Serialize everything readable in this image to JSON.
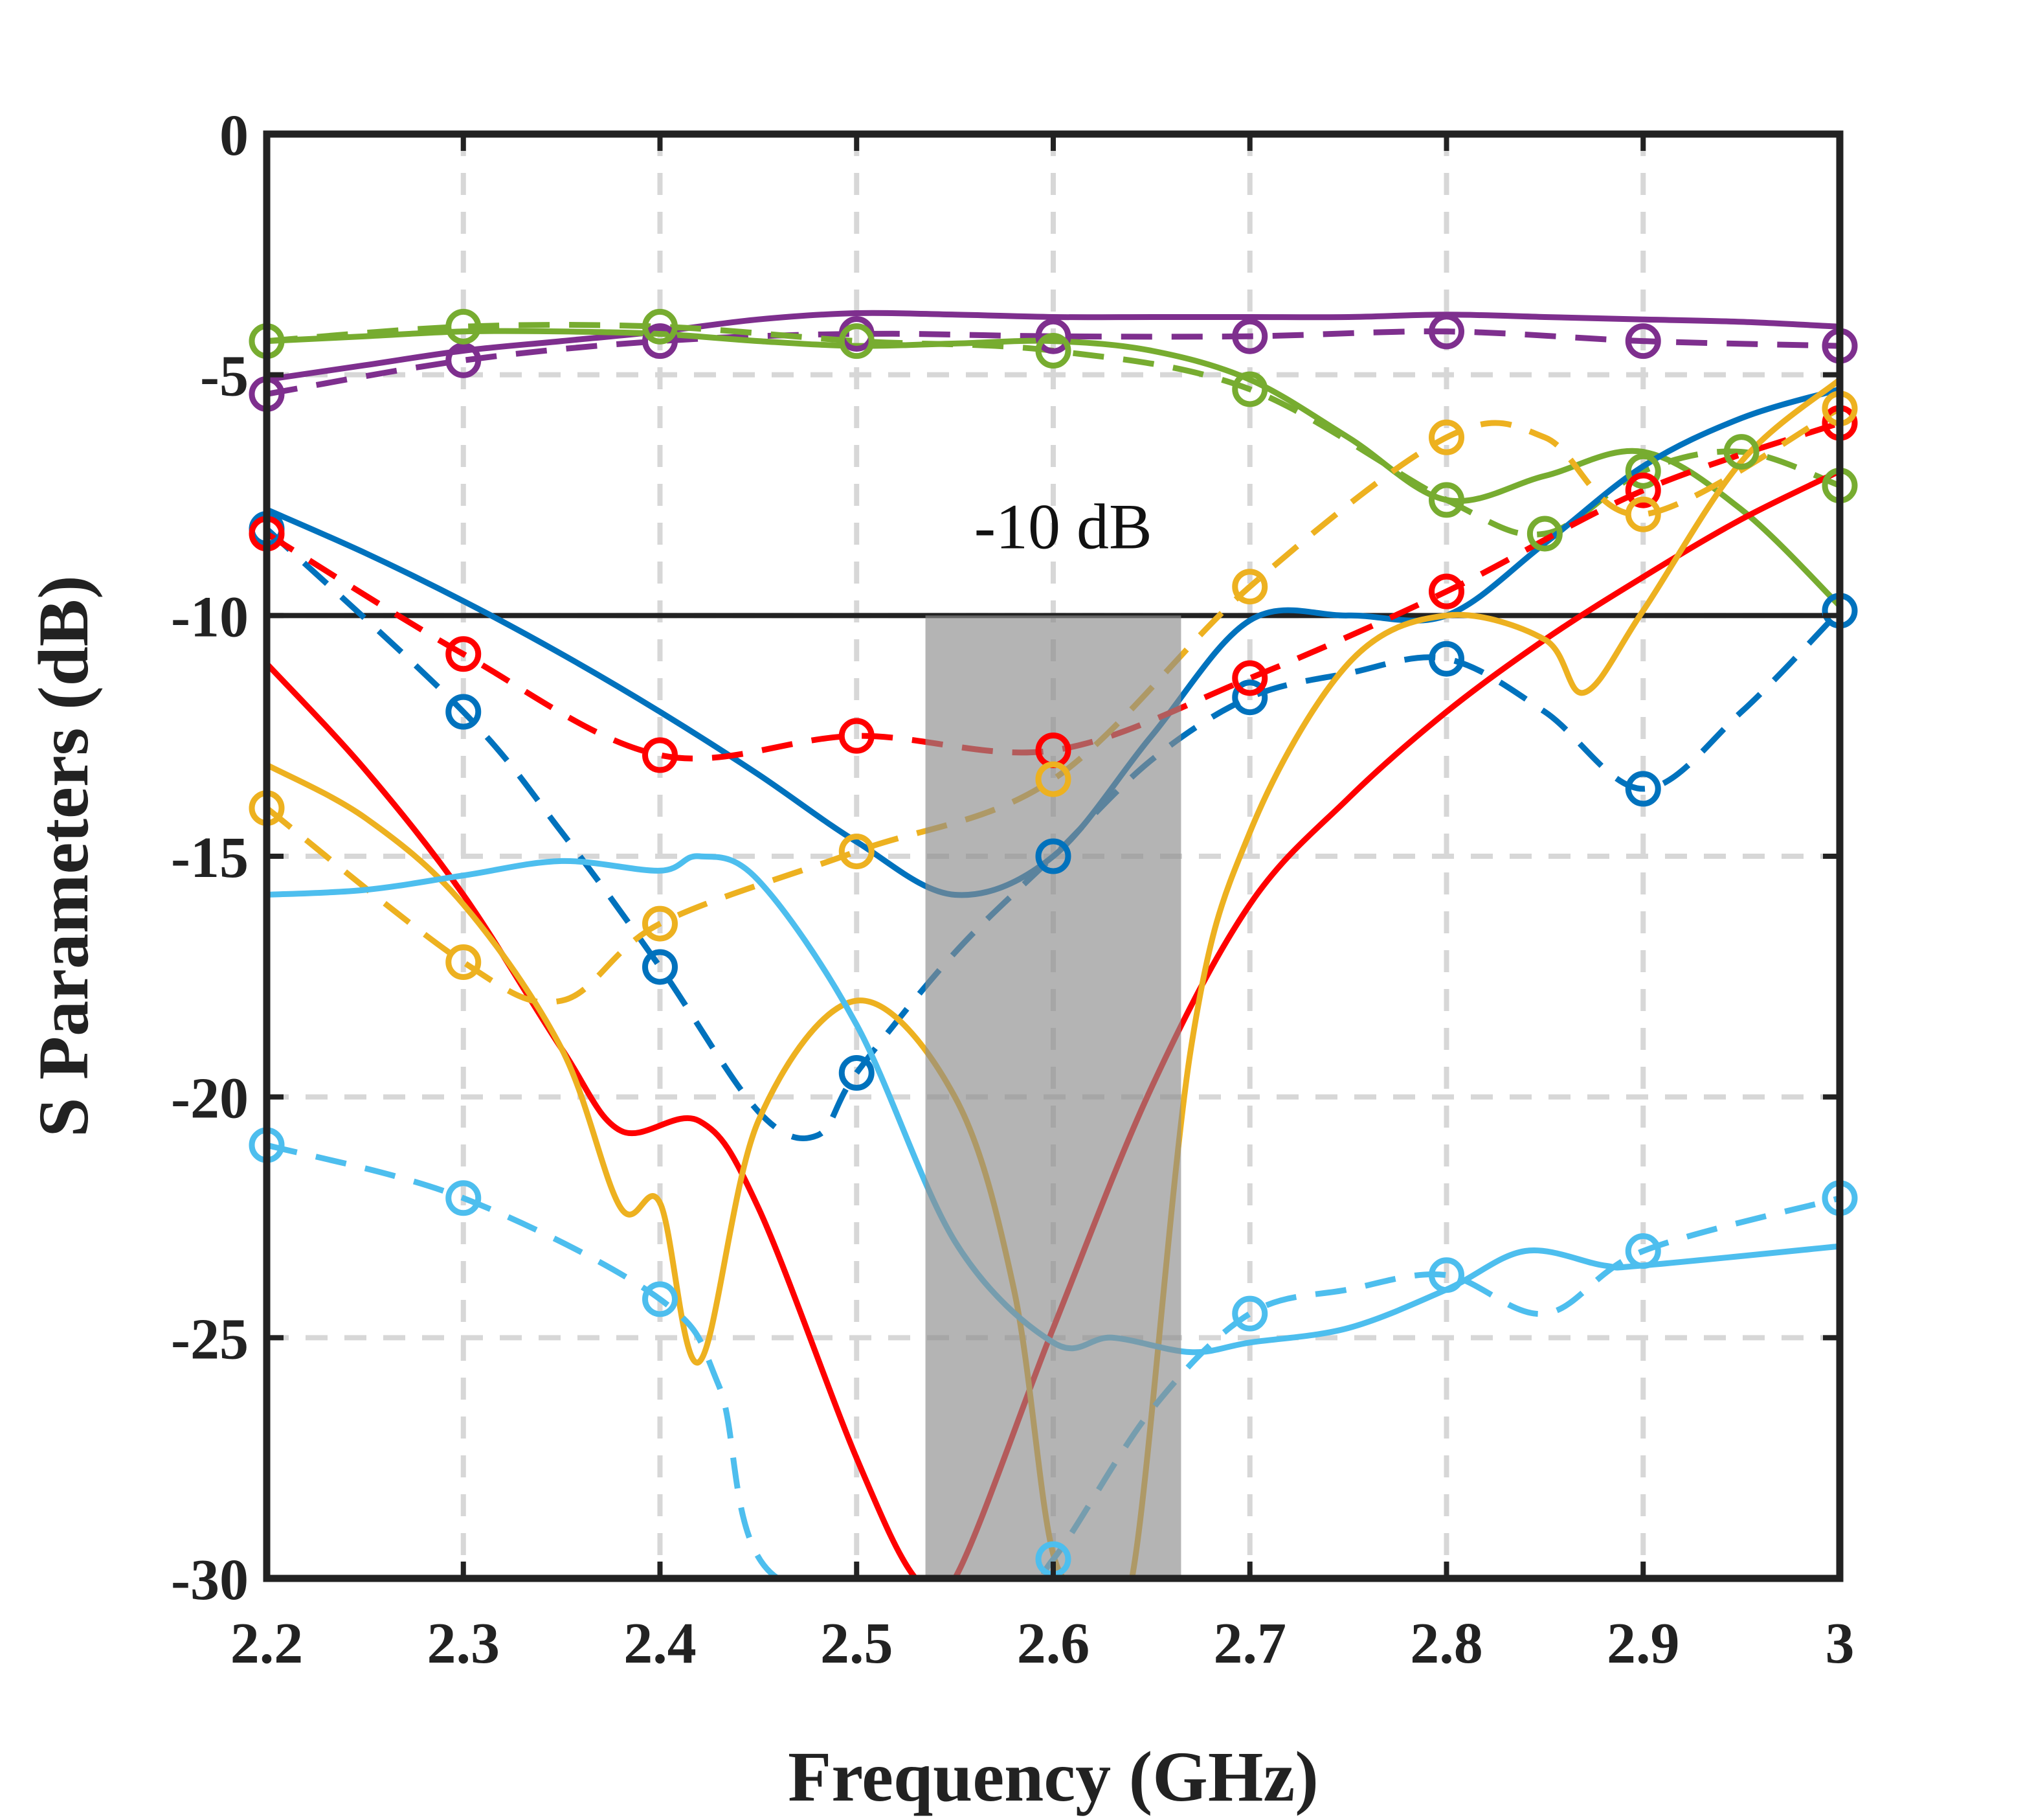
{
  "chart_data": {
    "type": "line",
    "title": "",
    "xlabel": "Frequency (GHz)",
    "ylabel": "S Parameters (dB)",
    "xlim": [
      2.2,
      3.0
    ],
    "ylim": [
      -30,
      0
    ],
    "grid": true,
    "x_ticks": [
      2.2,
      2.3,
      2.4,
      2.5,
      2.6,
      2.7,
      2.8,
      2.9,
      3.0
    ],
    "x_tick_labels": [
      "2.2",
      "2.3",
      "2.4",
      "2.5",
      "2.6",
      "2.7",
      "2.8",
      "2.9",
      "3"
    ],
    "y_ticks": [
      0,
      -5,
      -10,
      -15,
      -20,
      -25,
      -30
    ],
    "y_tick_labels": [
      "0",
      "-5",
      "-10",
      "-15",
      "-20",
      "-25",
      "-30"
    ],
    "reference_line": {
      "y": -10,
      "label": "-10 dB",
      "label_x": 2.605,
      "label_y": -8.6
    },
    "highlight_band": {
      "x_start": 2.535,
      "x_end": 2.665,
      "color": "#8c8c8c"
    },
    "series": [
      {
        "name": "purple-solid",
        "color": "#7E2F8E",
        "style": "solid",
        "x": [
          2.2,
          2.25,
          2.3,
          2.35,
          2.4,
          2.45,
          2.5,
          2.55,
          2.6,
          2.65,
          2.7,
          2.75,
          2.8,
          2.85,
          2.9,
          2.95,
          3.0
        ],
        "y": [
          -5.1,
          -4.8,
          -4.5,
          -4.3,
          -4.1,
          -3.85,
          -3.72,
          -3.75,
          -3.8,
          -3.8,
          -3.8,
          -3.8,
          -3.75,
          -3.8,
          -3.85,
          -3.9,
          -4.0
        ]
      },
      {
        "name": "purple-dashed",
        "color": "#7E2F8E",
        "style": "dashed",
        "x": [
          2.2,
          2.3,
          2.4,
          2.5,
          2.6,
          2.7,
          2.8,
          2.9,
          3.0
        ],
        "y": [
          -5.4,
          -4.7,
          -4.3,
          -4.15,
          -4.2,
          -4.2,
          -4.1,
          -4.3,
          -4.4
        ],
        "markers": true
      },
      {
        "name": "green-solid",
        "color": "#77AC30",
        "style": "solid",
        "x": [
          2.2,
          2.25,
          2.3,
          2.35,
          2.4,
          2.45,
          2.5,
          2.55,
          2.6,
          2.65,
          2.7,
          2.75,
          2.8,
          2.85,
          2.9,
          2.95,
          3.0
        ],
        "y": [
          -4.3,
          -4.2,
          -4.1,
          -4.1,
          -4.15,
          -4.3,
          -4.4,
          -4.35,
          -4.3,
          -4.5,
          -5.1,
          -6.3,
          -7.6,
          -7.1,
          -6.6,
          -7.8,
          -9.8
        ]
      },
      {
        "name": "green-dashed",
        "color": "#77AC30",
        "style": "dashed",
        "x": [
          2.2,
          2.3,
          2.4,
          2.5,
          2.6,
          2.7,
          2.8,
          2.85,
          2.9,
          2.95,
          3.0
        ],
        "y": [
          -4.3,
          -4.0,
          -4.0,
          -4.3,
          -4.5,
          -5.3,
          -7.6,
          -8.3,
          -7.0,
          -6.6,
          -7.3
        ],
        "markers": true
      },
      {
        "name": "blue-solid",
        "color": "#0072BD",
        "style": "solid",
        "x": [
          2.2,
          2.25,
          2.3,
          2.35,
          2.4,
          2.45,
          2.5,
          2.55,
          2.6,
          2.65,
          2.7,
          2.75,
          2.8,
          2.85,
          2.9,
          2.95,
          3.0
        ],
        "y": [
          -7.8,
          -8.7,
          -9.7,
          -10.8,
          -12.0,
          -13.3,
          -14.7,
          -15.8,
          -15.0,
          -12.5,
          -10.1,
          -10.0,
          -10.0,
          -8.5,
          -6.9,
          -5.9,
          -5.3
        ]
      },
      {
        "name": "blue-dashed",
        "color": "#0072BD",
        "style": "dashed",
        "x": [
          2.2,
          2.3,
          2.35,
          2.4,
          2.45,
          2.48,
          2.5,
          2.55,
          2.6,
          2.65,
          2.7,
          2.75,
          2.8,
          2.85,
          2.9,
          2.95,
          3.0
        ],
        "y": [
          -8.2,
          -12.0,
          -14.5,
          -17.3,
          -20.3,
          -20.8,
          -19.5,
          -17.0,
          -15.0,
          -13.0,
          -11.7,
          -11.2,
          -10.9,
          -12.0,
          -13.6,
          -12.0,
          -9.9
        ],
        "markers_x": [
          2.2,
          2.3,
          2.4,
          2.5,
          2.6,
          2.7,
          2.8,
          2.9,
          3.0
        ],
        "markers_y": [
          -8.2,
          -12.0,
          -17.3,
          -19.5,
          -15.0,
          -11.7,
          -10.9,
          -13.6,
          -9.9
        ]
      },
      {
        "name": "red-solid",
        "color": "#FF0000",
        "style": "solid",
        "x": [
          2.2,
          2.25,
          2.3,
          2.35,
          2.38,
          2.42,
          2.45,
          2.5,
          2.53,
          2.55,
          2.6,
          2.65,
          2.7,
          2.75,
          2.8,
          2.85,
          2.9,
          2.95,
          3.0
        ],
        "y": [
          -11.0,
          -13.2,
          -15.8,
          -19.0,
          -20.7,
          -20.5,
          -22.3,
          -27.5,
          -30.0,
          -30.0,
          -24.8,
          -19.8,
          -16.0,
          -13.8,
          -12.0,
          -10.5,
          -9.2,
          -8.0,
          -7.0
        ]
      },
      {
        "name": "red-dashed",
        "color": "#FF0000",
        "style": "dashed",
        "x": [
          2.2,
          2.3,
          2.4,
          2.5,
          2.6,
          2.7,
          2.8,
          2.9,
          3.0
        ],
        "y": [
          -8.3,
          -10.8,
          -12.9,
          -12.5,
          -12.8,
          -11.3,
          -9.5,
          -7.4,
          -6.0
        ],
        "markers": true
      },
      {
        "name": "yellow-solid",
        "color": "#EDB120",
        "style": "solid",
        "x": [
          2.2,
          2.25,
          2.3,
          2.35,
          2.38,
          2.4,
          2.42,
          2.45,
          2.5,
          2.55,
          2.58,
          2.6,
          2.62,
          2.64,
          2.67,
          2.7,
          2.75,
          2.8,
          2.85,
          2.87,
          2.9,
          2.95,
          3.0
        ],
        "y": [
          -13.1,
          -14.2,
          -16.0,
          -19.0,
          -22.3,
          -22.2,
          -25.5,
          -20.5,
          -18.0,
          -20.0,
          -24.0,
          -29.5,
          -30.0,
          -30.0,
          -19.0,
          -14.5,
          -11.0,
          -10.0,
          -10.5,
          -11.6,
          -9.9,
          -6.8,
          -5.1
        ]
      },
      {
        "name": "yellow-dashed",
        "color": "#EDB120",
        "style": "dashed",
        "x": [
          2.2,
          2.3,
          2.35,
          2.4,
          2.5,
          2.6,
          2.7,
          2.8,
          2.85,
          2.9,
          3.0
        ],
        "y": [
          -14.0,
          -17.2,
          -18.0,
          -16.4,
          -14.9,
          -13.4,
          -9.4,
          -6.3,
          -6.3,
          -7.9,
          -5.7
        ],
        "markers_x": [
          2.2,
          2.3,
          2.4,
          2.5,
          2.6,
          2.7,
          2.8,
          2.9,
          3.0
        ],
        "markers_y": [
          -14.0,
          -17.2,
          -16.4,
          -14.9,
          -13.4,
          -9.4,
          -6.3,
          -7.9,
          -5.7
        ]
      },
      {
        "name": "cyan-solid",
        "color": "#4DBEEE",
        "style": "solid",
        "x": [
          2.2,
          2.25,
          2.3,
          2.35,
          2.4,
          2.42,
          2.45,
          2.5,
          2.55,
          2.6,
          2.63,
          2.67,
          2.7,
          2.75,
          2.8,
          2.84,
          2.88,
          2.9,
          3.0
        ],
        "y": [
          -15.8,
          -15.7,
          -15.4,
          -15.1,
          -15.3,
          -15.0,
          -15.5,
          -18.5,
          -23.0,
          -25.1,
          -25.0,
          -25.3,
          -25.1,
          -24.8,
          -24.0,
          -23.2,
          -23.5,
          -23.5,
          -23.1
        ]
      },
      {
        "name": "cyan-dashed",
        "color": "#4DBEEE",
        "style": "dashed",
        "x": [
          2.2,
          2.3,
          2.4,
          2.43,
          2.46,
          2.58,
          2.6,
          2.65,
          2.7,
          2.75,
          2.8,
          2.85,
          2.9,
          3.0
        ],
        "y": [
          -21.0,
          -22.1,
          -24.2,
          -26.0,
          -30.0,
          -30.0,
          -29.6,
          -26.5,
          -24.5,
          -24.0,
          -23.7,
          -24.5,
          -23.2,
          -22.1
        ],
        "markers_x": [
          2.2,
          2.3,
          2.4,
          2.6,
          2.7,
          2.8,
          2.9,
          3.0
        ],
        "markers_y": [
          -21.0,
          -22.1,
          -24.2,
          -29.6,
          -24.5,
          -23.7,
          -23.2,
          -22.1
        ]
      }
    ]
  }
}
